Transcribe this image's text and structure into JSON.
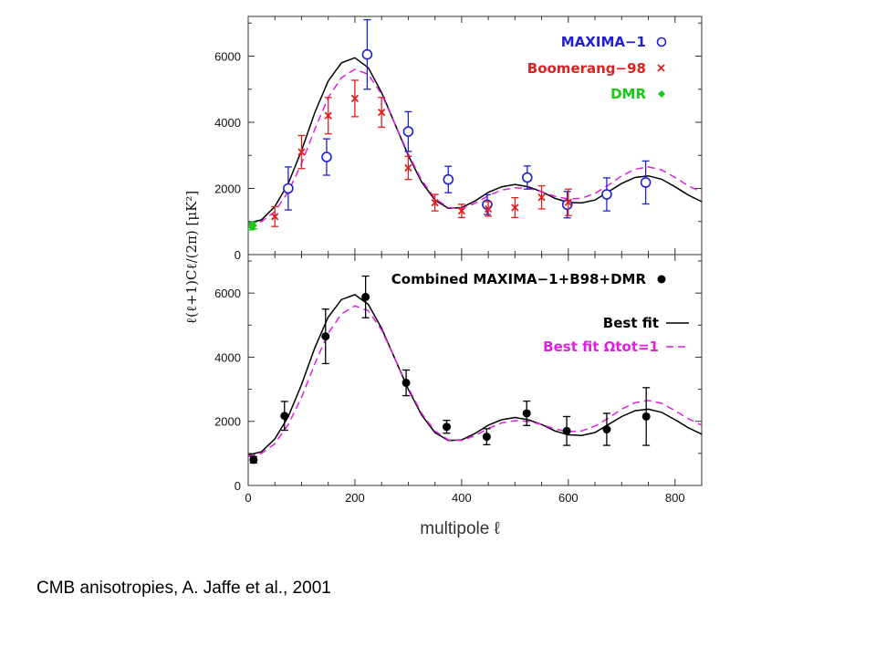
{
  "caption": "CMB anisotropies, A. Jaffe et al., 2001",
  "colors": {
    "maxima": "#1f1fd6",
    "boomerang": "#e01f1f",
    "dmr": "#17c917",
    "combined": "#000000",
    "best_fit": "#000000",
    "best_fit_omega": "#e01fe0"
  },
  "chart_data": [
    {
      "type": "scatter",
      "panel": "top",
      "ylabel": "ℓ(ℓ+1)Cℓ/(2π) [μK²]",
      "xlim": [
        0,
        850
      ],
      "ylim": [
        0,
        7200
      ],
      "xticks": [
        0,
        200,
        400,
        600,
        800
      ],
      "yticks": [
        0,
        2000,
        4000,
        6000
      ],
      "ytick_labels": [
        "0",
        "2000",
        "4000",
        "6000"
      ],
      "grid": false,
      "legend_position": "top-right",
      "series": [
        {
          "name": "MAXIMA−1",
          "marker": "open-circle",
          "points": [
            {
              "x": 75,
              "y": 2000,
              "err": 650
            },
            {
              "x": 147,
              "y": 2950,
              "err": 550
            },
            {
              "x": 223,
              "y": 6050,
              "err": 1050
            },
            {
              "x": 300,
              "y": 3720,
              "err": 600
            },
            {
              "x": 375,
              "y": 2270,
              "err": 400
            },
            {
              "x": 448,
              "y": 1510,
              "err": 300
            },
            {
              "x": 523,
              "y": 2330,
              "err": 350
            },
            {
              "x": 598,
              "y": 1510,
              "err": 400
            },
            {
              "x": 672,
              "y": 1820,
              "err": 500
            },
            {
              "x": 745,
              "y": 2180,
              "err": 650
            }
          ]
        },
        {
          "name": "Boomerang−98",
          "marker": "cross",
          "points": [
            {
              "x": 50,
              "y": 1150,
              "err": 300
            },
            {
              "x": 100,
              "y": 3100,
              "err": 500
            },
            {
              "x": 150,
              "y": 4200,
              "err": 550
            },
            {
              "x": 200,
              "y": 4720,
              "err": 550
            },
            {
              "x": 250,
              "y": 4300,
              "err": 450
            },
            {
              "x": 300,
              "y": 2620,
              "err": 350
            },
            {
              "x": 350,
              "y": 1570,
              "err": 250
            },
            {
              "x": 400,
              "y": 1320,
              "err": 200
            },
            {
              "x": 450,
              "y": 1380,
              "err": 220
            },
            {
              "x": 500,
              "y": 1420,
              "err": 300
            },
            {
              "x": 550,
              "y": 1730,
              "err": 350
            },
            {
              "x": 600,
              "y": 1580,
              "err": 400
            }
          ]
        },
        {
          "name": "DMR",
          "marker": "diamond",
          "points": [
            {
              "x": 6,
              "y": 850,
              "err": 100
            },
            {
              "x": 10,
              "y": 880,
              "err": 100
            }
          ]
        }
      ],
      "curves": [
        {
          "name": "best_fit",
          "style": "solid",
          "x": [
            0,
            25,
            50,
            75,
            100,
            125,
            150,
            175,
            200,
            225,
            250,
            275,
            300,
            325,
            350,
            375,
            400,
            425,
            450,
            475,
            500,
            525,
            550,
            575,
            600,
            625,
            650,
            675,
            700,
            725,
            750,
            775,
            800,
            825,
            850
          ],
          "y": [
            950,
            1050,
            1450,
            2150,
            3150,
            4300,
            5250,
            5800,
            5950,
            5650,
            4900,
            3950,
            3000,
            2200,
            1650,
            1400,
            1420,
            1620,
            1880,
            2050,
            2120,
            2050,
            1900,
            1700,
            1580,
            1560,
            1650,
            1900,
            2150,
            2330,
            2380,
            2280,
            2050,
            1800,
            1600
          ]
        },
        {
          "name": "best_fit_omega",
          "style": "dashed",
          "x": [
            0,
            25,
            50,
            75,
            100,
            125,
            150,
            175,
            200,
            225,
            250,
            275,
            300,
            325,
            350,
            375,
            400,
            425,
            450,
            475,
            500,
            525,
            550,
            575,
            600,
            625,
            650,
            675,
            700,
            725,
            750,
            775,
            800,
            825,
            850
          ],
          "y": [
            900,
            1000,
            1300,
            1900,
            2750,
            3800,
            4750,
            5350,
            5600,
            5450,
            4850,
            3950,
            3050,
            2250,
            1700,
            1420,
            1400,
            1550,
            1780,
            1950,
            2020,
            2000,
            1900,
            1760,
            1680,
            1700,
            1850,
            2100,
            2380,
            2580,
            2650,
            2560,
            2330,
            2080,
            1880
          ]
        }
      ]
    },
    {
      "type": "scatter",
      "panel": "bottom",
      "xlabel": "multipole ℓ",
      "xlim": [
        0,
        850
      ],
      "ylim": [
        0,
        7200
      ],
      "xticks": [
        0,
        200,
        400,
        600,
        800
      ],
      "xtick_labels": [
        "0",
        "200",
        "400",
        "600",
        "800"
      ],
      "yticks": [
        0,
        2000,
        4000,
        6000
      ],
      "ytick_labels": [
        "0",
        "2000",
        "4000",
        "6000"
      ],
      "grid": false,
      "legend_position": "top-right",
      "series": [
        {
          "name": "Combined MAXIMA−1+B98+DMR",
          "marker": "filled-circle",
          "points": [
            {
              "x": 10,
              "y": 800,
              "err": 100
            },
            {
              "x": 68,
              "y": 2170,
              "err": 450
            },
            {
              "x": 145,
              "y": 4650,
              "err": 850
            },
            {
              "x": 220,
              "y": 5880,
              "err": 650
            },
            {
              "x": 296,
              "y": 3200,
              "err": 400
            },
            {
              "x": 372,
              "y": 1830,
              "err": 200
            },
            {
              "x": 447,
              "y": 1520,
              "err": 250
            },
            {
              "x": 522,
              "y": 2250,
              "err": 380
            },
            {
              "x": 597,
              "y": 1700,
              "err": 450
            },
            {
              "x": 672,
              "y": 1750,
              "err": 500
            },
            {
              "x": 746,
              "y": 2150,
              "err": 900
            }
          ]
        }
      ],
      "curves": [
        {
          "name": "Best fit",
          "style": "solid",
          "x": [
            0,
            25,
            50,
            75,
            100,
            125,
            150,
            175,
            200,
            225,
            250,
            275,
            300,
            325,
            350,
            375,
            400,
            425,
            450,
            475,
            500,
            525,
            550,
            575,
            600,
            625,
            650,
            675,
            700,
            725,
            750,
            775,
            800,
            825,
            850
          ],
          "y": [
            950,
            1050,
            1450,
            2150,
            3150,
            4300,
            5250,
            5800,
            5950,
            5650,
            4900,
            3950,
            3000,
            2200,
            1650,
            1400,
            1420,
            1620,
            1880,
            2050,
            2120,
            2050,
            1900,
            1700,
            1580,
            1560,
            1650,
            1900,
            2150,
            2330,
            2380,
            2280,
            2050,
            1800,
            1600
          ]
        },
        {
          "name": "Best fit Ωtot=1",
          "style": "dashed",
          "x": [
            0,
            25,
            50,
            75,
            100,
            125,
            150,
            175,
            200,
            225,
            250,
            275,
            300,
            325,
            350,
            375,
            400,
            425,
            450,
            475,
            500,
            525,
            550,
            575,
            600,
            625,
            650,
            675,
            700,
            725,
            750,
            775,
            800,
            825,
            850
          ],
          "y": [
            900,
            1000,
            1300,
            1900,
            2750,
            3800,
            4750,
            5350,
            5600,
            5450,
            4850,
            3950,
            3050,
            2250,
            1700,
            1420,
            1400,
            1550,
            1780,
            1950,
            2020,
            2000,
            1900,
            1760,
            1680,
            1700,
            1850,
            2100,
            2380,
            2580,
            2650,
            2560,
            2330,
            2080,
            1880
          ]
        }
      ]
    }
  ]
}
